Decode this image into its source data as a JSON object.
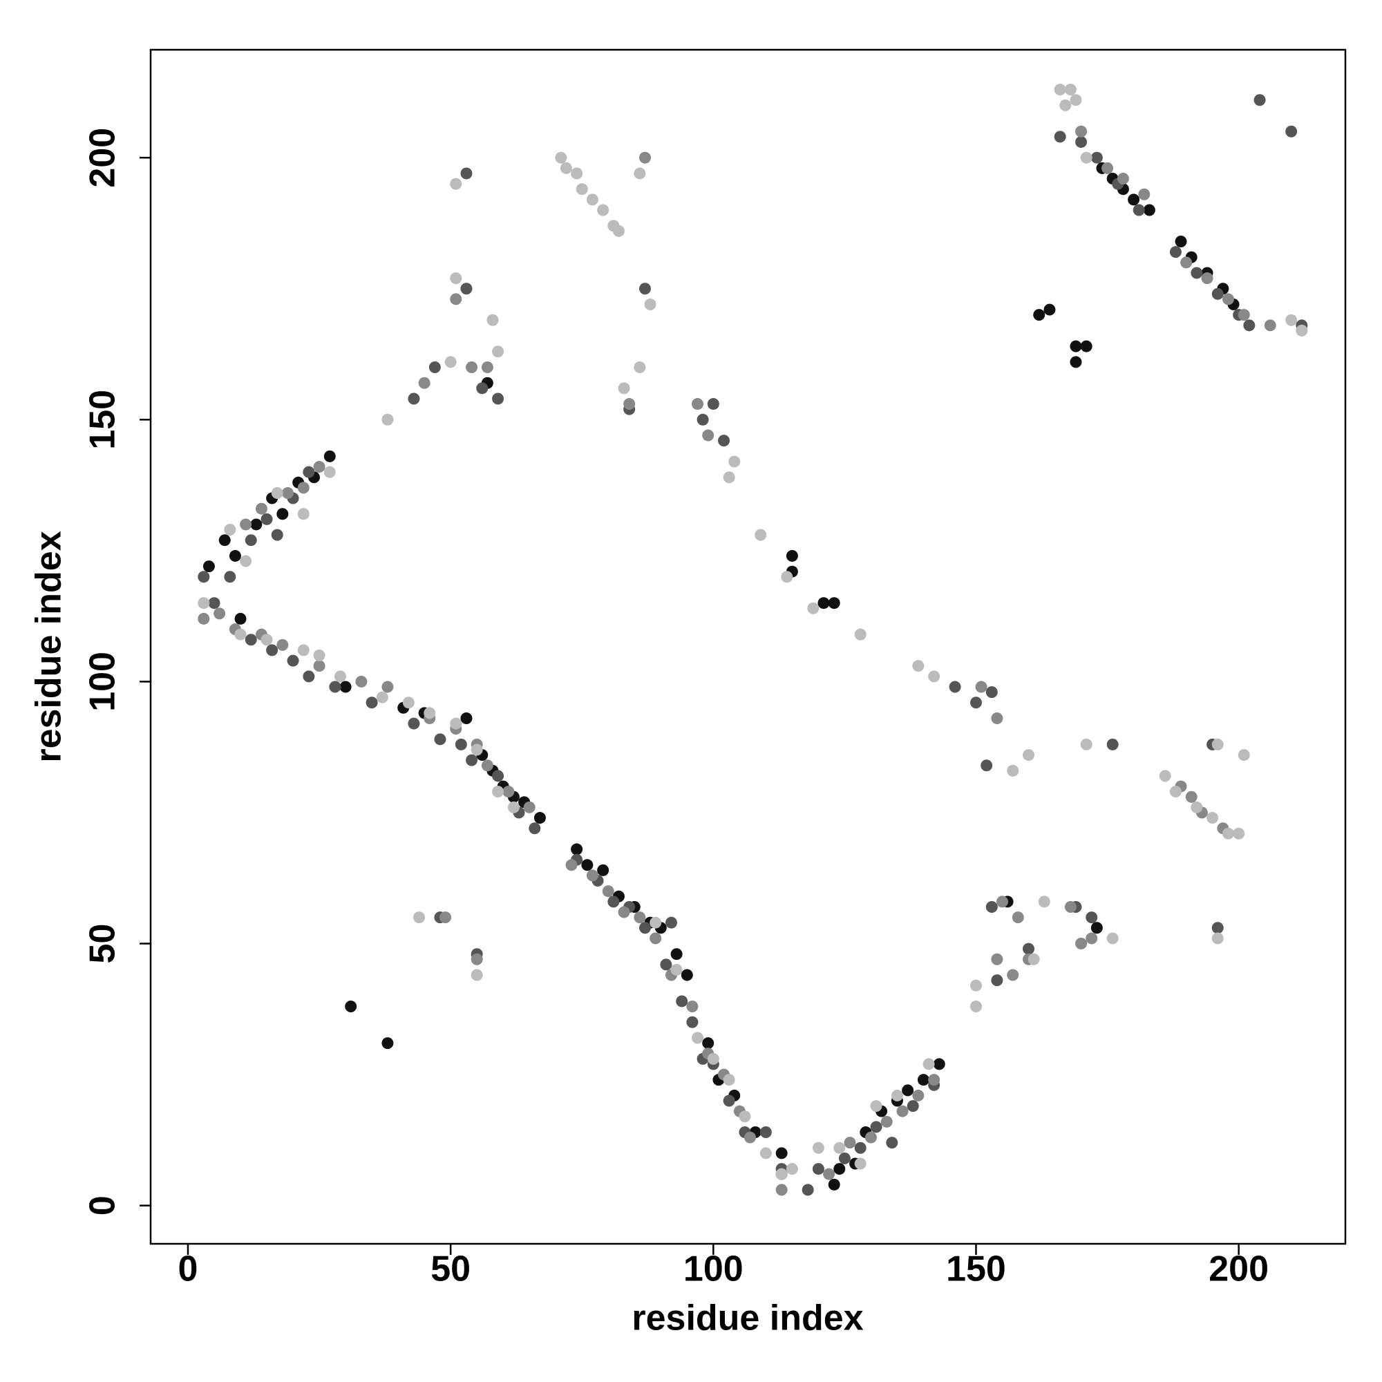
{
  "chart_data": {
    "type": "scatter",
    "xlabel": "residue index",
    "ylabel": "residue index",
    "xlim": [
      -7.1,
      220.3
    ],
    "ylim": [
      -7.3,
      220.6
    ],
    "xticks": [
      0,
      50,
      100,
      150,
      200
    ],
    "yticks": [
      0,
      50,
      100,
      150,
      200
    ],
    "grid": false,
    "series": [
      {
        "color": "#111111",
        "x": [
          4,
          7,
          9,
          13,
          16,
          18,
          21,
          24,
          27,
          10,
          30,
          41,
          45,
          53,
          56,
          58,
          60,
          62,
          64,
          67,
          74,
          76,
          79,
          82,
          85,
          88,
          90,
          93,
          95,
          99,
          101,
          104,
          108,
          113,
          115,
          115,
          121,
          123,
          124,
          127,
          129,
          132,
          135,
          137,
          140,
          143,
          162,
          164,
          169,
          171,
          169,
          174,
          176,
          178,
          180,
          183,
          189,
          191,
          194,
          197,
          199,
          38,
          31,
          57,
          173,
          156,
          123,
          113
        ],
        "values": [
          122,
          127,
          124,
          130,
          135,
          132,
          138,
          139,
          143,
          112,
          99,
          95,
          94,
          93,
          86,
          83,
          80,
          78,
          77,
          74,
          68,
          65,
          64,
          59,
          57,
          54,
          53,
          48,
          44,
          31,
          24,
          21,
          14,
          10,
          124,
          121,
          115,
          115,
          7,
          8,
          14,
          18,
          20,
          22,
          24,
          27,
          170,
          171,
          164,
          164,
          161,
          198,
          196,
          194,
          192,
          190,
          184,
          181,
          178,
          175,
          172,
          31,
          38,
          157,
          53,
          58,
          4,
          6
        ]
      },
      {
        "color": "#555555",
        "x": [
          3,
          5,
          8,
          12,
          15,
          17,
          20,
          23,
          12,
          16,
          20,
          23,
          28,
          35,
          43,
          48,
          52,
          54,
          59,
          63,
          66,
          74,
          78,
          81,
          84,
          87,
          91,
          92,
          94,
          96,
          98,
          100,
          103,
          106,
          110,
          113,
          118,
          120,
          125,
          128,
          131,
          134,
          138,
          142,
          48,
          55,
          53,
          53,
          56,
          59,
          47,
          43,
          84,
          87,
          98,
          100,
          102,
          146,
          150,
          153,
          152,
          153,
          154,
          160,
          172,
          169,
          196,
          195,
          166,
          170,
          173,
          177,
          181,
          188,
          192,
          196,
          200,
          202,
          204,
          210,
          212,
          176
        ],
        "values": [
          120,
          115,
          120,
          127,
          131,
          128,
          135,
          140,
          108,
          106,
          104,
          101,
          99,
          96,
          92,
          89,
          88,
          85,
          82,
          75,
          72,
          66,
          62,
          58,
          57,
          53,
          46,
          54,
          39,
          35,
          28,
          27,
          20,
          14,
          14,
          7,
          3,
          7,
          9,
          11,
          15,
          12,
          19,
          23,
          55,
          48,
          197,
          175,
          156,
          154,
          160,
          154,
          152,
          175,
          150,
          153,
          146,
          99,
          96,
          98,
          84,
          57,
          43,
          49,
          55,
          57,
          53,
          88,
          204,
          203,
          200,
          195,
          190,
          182,
          178,
          174,
          170,
          168,
          211,
          205,
          168,
          88
        ]
      },
      {
        "color": "#888888",
        "x": [
          3,
          6,
          11,
          14,
          19,
          22,
          25,
          9,
          14,
          18,
          25,
          33,
          38,
          46,
          51,
          55,
          57,
          61,
          65,
          73,
          77,
          80,
          83,
          86,
          89,
          92,
          96,
          99,
          102,
          105,
          107,
          113,
          122,
          126,
          130,
          133,
          136,
          139,
          142,
          51,
          57,
          54,
          45,
          49,
          55,
          84,
          87,
          97,
          99,
          151,
          154,
          155,
          158,
          157,
          160,
          168,
          170,
          172,
          154,
          189,
          191,
          193,
          197,
          170,
          175,
          178,
          182,
          190,
          194,
          198,
          201,
          206
        ],
        "values": [
          112,
          113,
          130,
          133,
          136,
          137,
          141,
          110,
          109,
          107,
          103,
          100,
          99,
          93,
          91,
          88,
          84,
          79,
          76,
          65,
          63,
          60,
          56,
          55,
          51,
          44,
          38,
          29,
          25,
          18,
          13,
          3,
          6,
          12,
          13,
          16,
          18,
          21,
          24,
          173,
          160,
          160,
          157,
          55,
          47,
          153,
          200,
          153,
          147,
          99,
          93,
          58,
          55,
          44,
          47,
          57,
          50,
          51,
          47,
          80,
          78,
          75,
          72,
          205,
          198,
          196,
          193,
          180,
          177,
          173,
          170,
          168
        ]
      },
      {
        "color": "#bbbbbb",
        "x": [
          3,
          8,
          11,
          17,
          22,
          27,
          10,
          15,
          22,
          25,
          29,
          37,
          42,
          46,
          51,
          55,
          59,
          62,
          71,
          72,
          74,
          75,
          77,
          79,
          81,
          82,
          86,
          88,
          86,
          83,
          104,
          103,
          109,
          114,
          119,
          128,
          139,
          142,
          150,
          150,
          157,
          160,
          163,
          161,
          171,
          176,
          186,
          188,
          192,
          195,
          198,
          200,
          196,
          201,
          196,
          166,
          168,
          167,
          169,
          171,
          115,
          124,
          128,
          131,
          44,
          55,
          38,
          50,
          51,
          59,
          58,
          51,
          89,
          93,
          97,
          100,
          103,
          106,
          110,
          113,
          120,
          135,
          141,
          210,
          212
        ],
        "values": [
          115,
          129,
          123,
          136,
          132,
          140,
          109,
          108,
          106,
          105,
          101,
          97,
          96,
          94,
          92,
          87,
          79,
          76,
          200,
          198,
          197,
          194,
          192,
          190,
          187,
          186,
          197,
          172,
          160,
          156,
          142,
          139,
          128,
          120,
          114,
          109,
          103,
          101,
          42,
          38,
          83,
          86,
          58,
          47,
          88,
          51,
          82,
          79,
          76,
          74,
          71,
          71,
          88,
          86,
          51,
          213,
          213,
          210,
          211,
          200,
          7,
          11,
          8,
          19,
          55,
          44,
          150,
          161,
          177,
          163,
          169,
          195,
          54,
          45,
          32,
          28,
          24,
          17,
          10,
          6,
          11,
          21,
          27,
          169,
          167
        ]
      }
    ]
  }
}
